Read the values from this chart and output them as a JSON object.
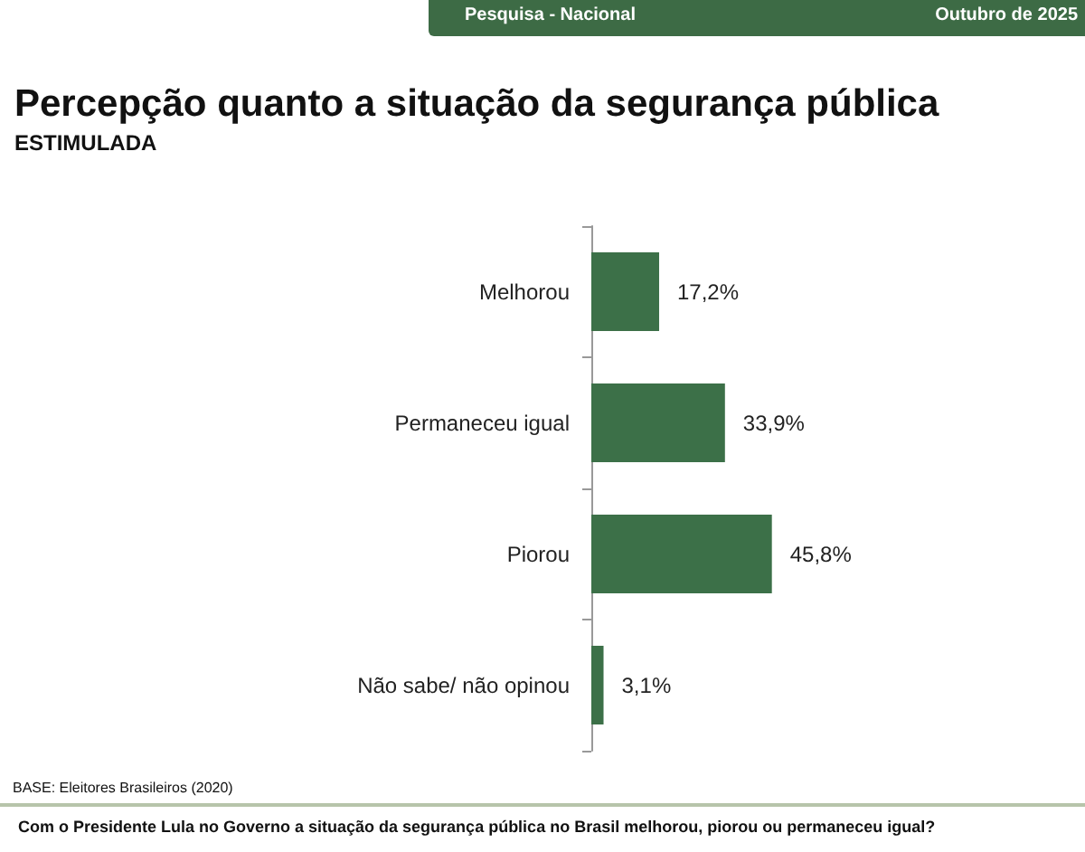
{
  "chart_data": {
    "type": "bar",
    "orientation": "horizontal",
    "title": "Percepção quanto a situação da segurança pública",
    "subtitle": "ESTIMULADA",
    "categories": [
      "Melhorou",
      "Permaneceu igual",
      "Piorou",
      "Não sabe/ não opinou"
    ],
    "values": [
      17.2,
      33.9,
      45.8,
      3.1
    ],
    "value_labels": [
      "17,2%",
      "33,9%",
      "45,8%",
      "3,1%"
    ],
    "color": "#3c7048",
    "grid": false,
    "annotations": [
      "Pesquisa - Nacional",
      "Outubro de 2025",
      "BASE: Eleitores Brasileiros (2020)",
      "Com o Presidente Lula no Governo a situação da segurança pública no Brasil melhorou, piorou ou permaneceu igual?"
    ]
  }
}
